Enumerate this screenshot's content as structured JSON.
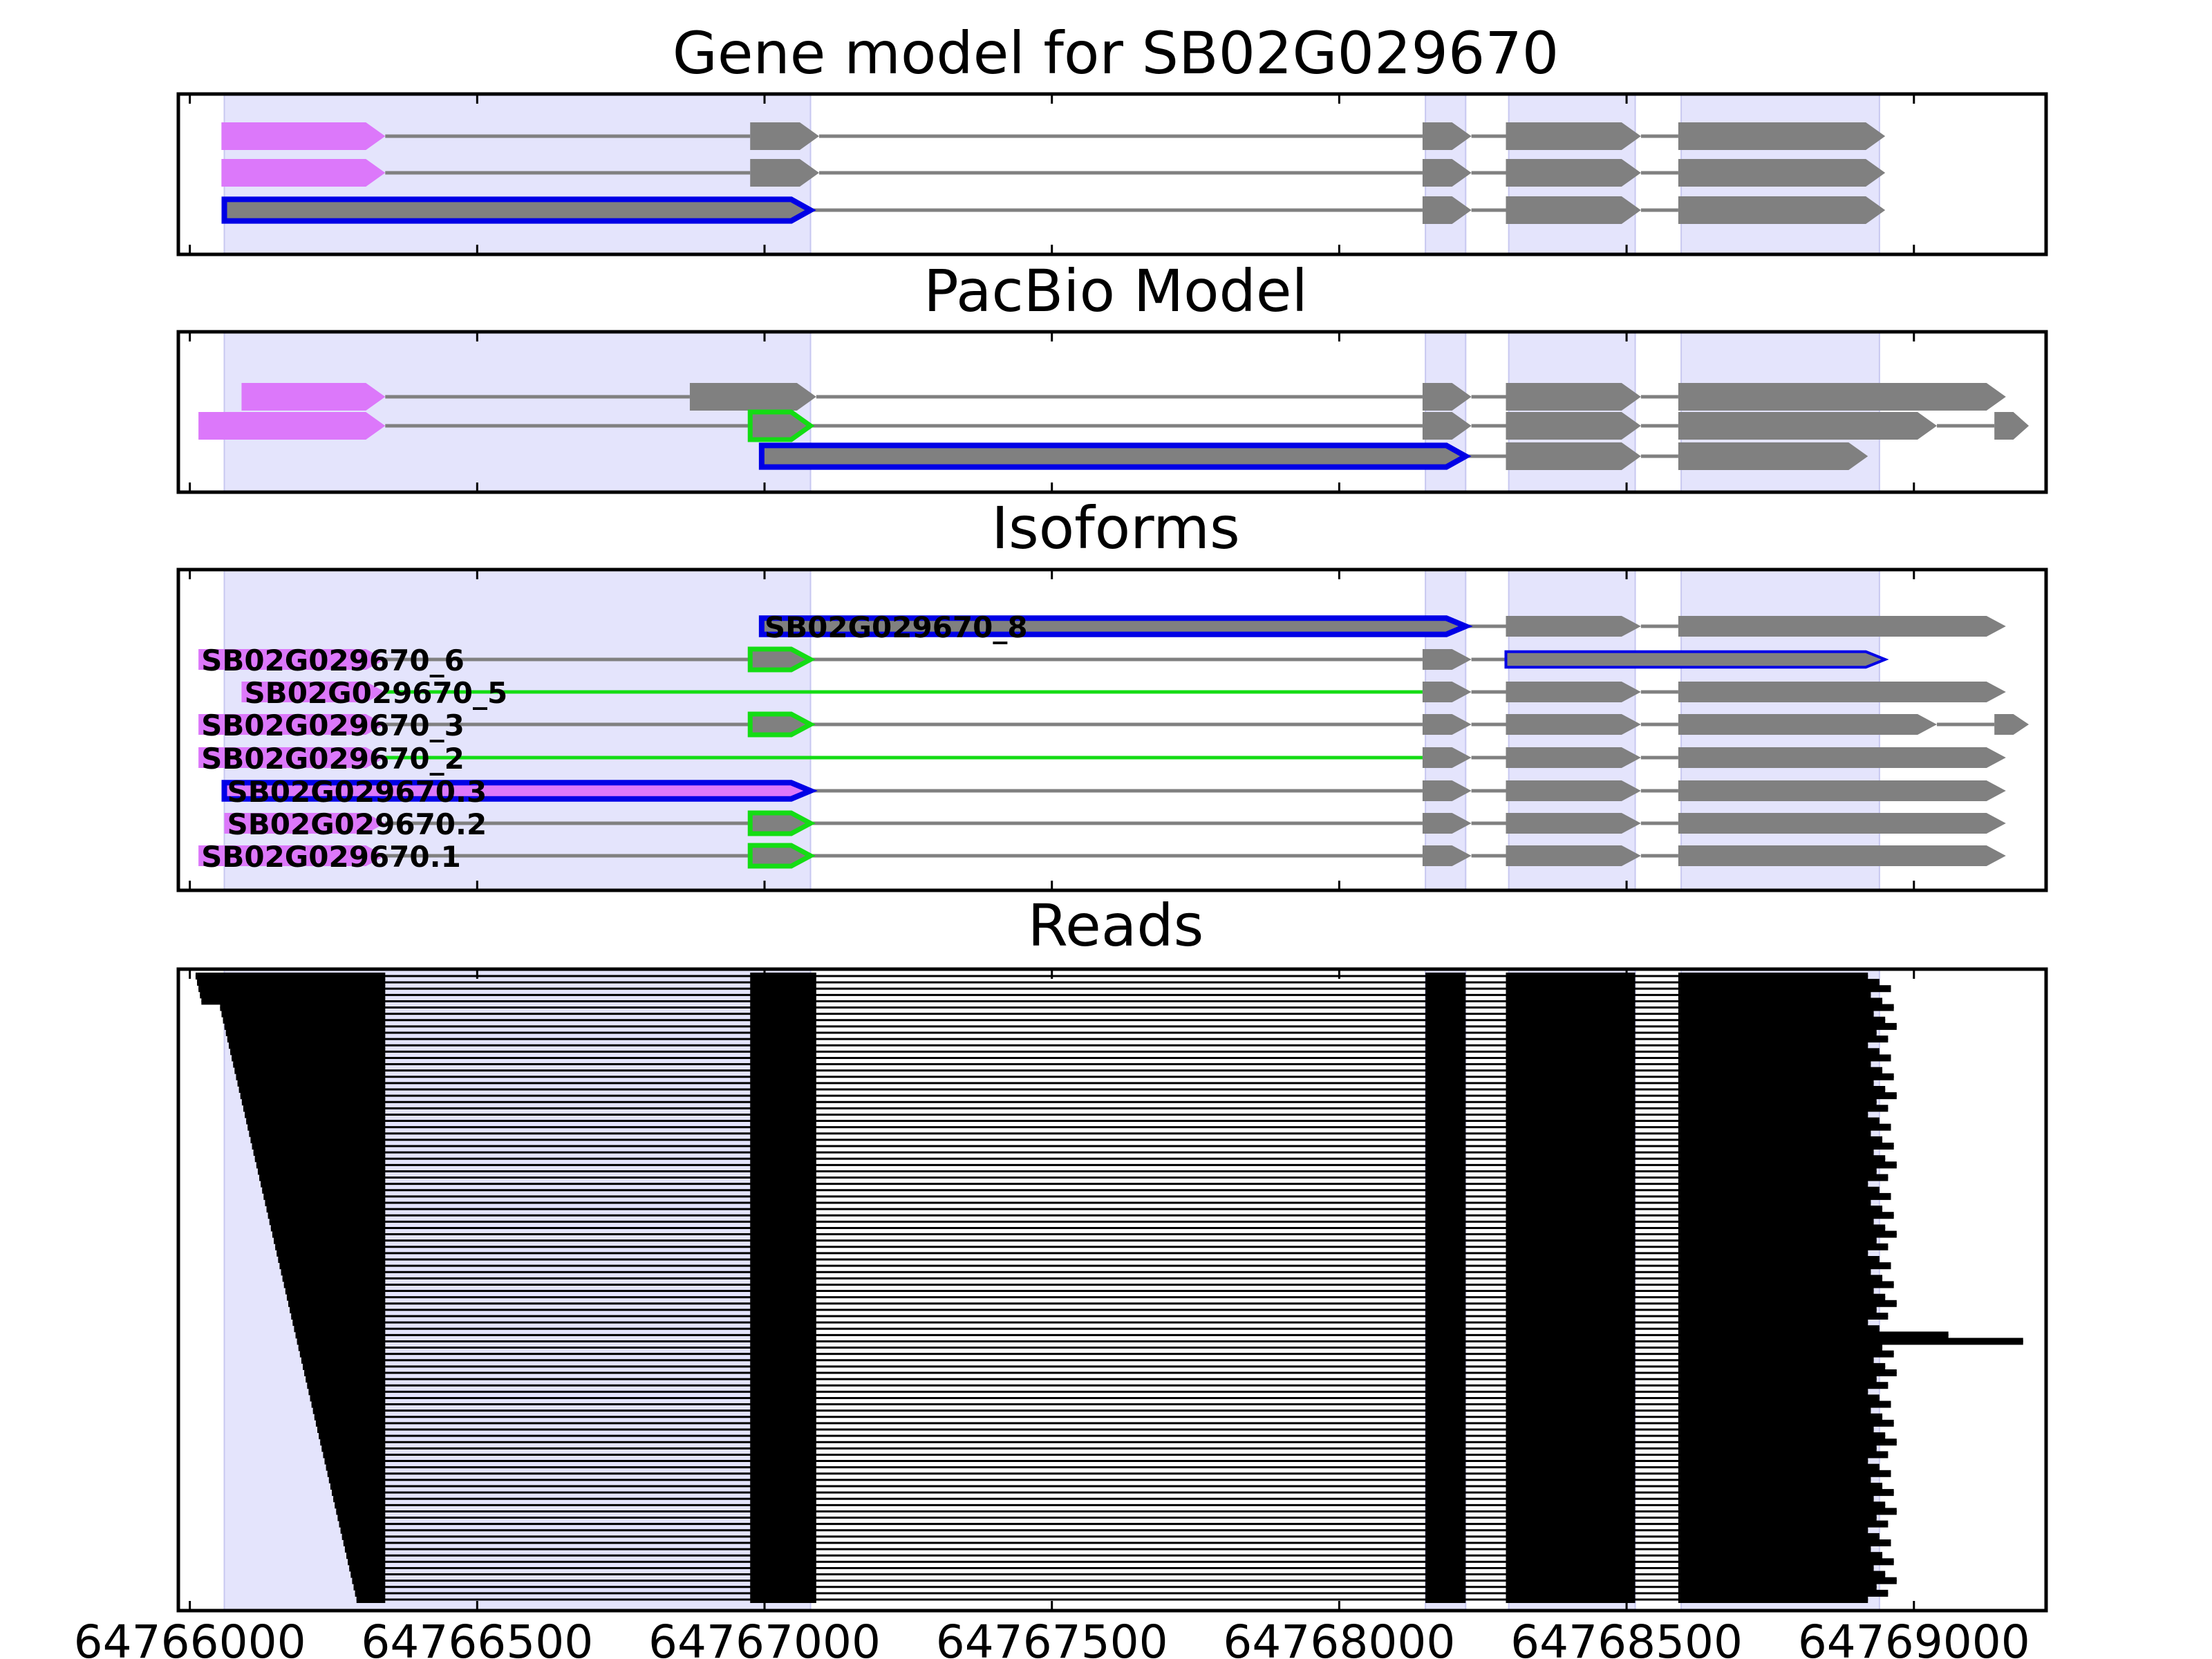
{
  "chart_data": {
    "type": "gene-structure",
    "x_ticks": [
      "64766000",
      "64766500",
      "64767000",
      "64767500",
      "64768000",
      "64768500",
      "64769000"
    ],
    "x_tick_values": [
      64766000,
      64766500,
      64767000,
      64767500,
      64768000,
      64768500,
      64769000
    ],
    "xlim": [
      64765980,
      64769230
    ],
    "colors": {
      "exon": "#808080",
      "utr": "#dc78fa",
      "highlight_border": "#0000e6",
      "novel_green": "#14dc14",
      "intron": "#808080",
      "shade": "#e4e4fc",
      "read": "#000000"
    },
    "exon_regions": [
      [
        64766060,
        64767080
      ],
      [
        64768150,
        64768220
      ],
      [
        64768295,
        64768515
      ],
      [
        64768595,
        64768940
      ]
    ],
    "panels": [
      {
        "title": "Gene model for SB02G029670",
        "tracks": [
          {
            "exons": [
              [
                64766055,
                64766340,
                "utr"
              ],
              [
                64766975,
                64767095,
                "cds"
              ],
              [
                64768145,
                64768230,
                "cds"
              ],
              [
                64768290,
                64768525,
                "cds"
              ],
              [
                64768590,
                64768950,
                "cds"
              ]
            ]
          },
          {
            "exons": [
              [
                64766055,
                64766340,
                "utr"
              ],
              [
                64766975,
                64767095,
                "cds"
              ],
              [
                64768145,
                64768230,
                "cds"
              ],
              [
                64768290,
                64768525,
                "cds"
              ],
              [
                64768590,
                64768950,
                "cds"
              ]
            ]
          },
          {
            "exons": [
              [
                64766060,
                64767080,
                "hl"
              ],
              [
                64768145,
                64768230,
                "cds"
              ],
              [
                64768290,
                64768525,
                "cds"
              ],
              [
                64768590,
                64768950,
                "cds"
              ]
            ]
          }
        ]
      },
      {
        "title": "PacBio Model",
        "tracks": [
          {
            "exons": [
              [
                64766090,
                64766340,
                "utr"
              ],
              [
                64766870,
                64767090,
                "cds"
              ],
              [
                64768145,
                64768230,
                "cds"
              ],
              [
                64768290,
                64768525,
                "cds"
              ],
              [
                64768590,
                64769160,
                "cds"
              ]
            ]
          },
          {
            "exons": [
              [
                64766015,
                64766340,
                "utr"
              ],
              [
                64766975,
                64767080,
                "green"
              ],
              [
                64768145,
                64768230,
                "cds"
              ],
              [
                64768290,
                64768525,
                "cds"
              ],
              [
                64768590,
                64769040,
                "cds"
              ],
              [
                64769140,
                64769200,
                "cds"
              ]
            ]
          },
          {
            "exons": [
              [
                64766995,
                64768220,
                "hl"
              ],
              [
                64768290,
                64768525,
                "cds"
              ],
              [
                64768590,
                64768920,
                "cds"
              ]
            ]
          }
        ]
      },
      {
        "title": "Isoforms",
        "tracks": [
          {
            "label": "SB02G029670_8",
            "exons": [
              [
                64766995,
                64768220,
                "hl"
              ],
              [
                64768290,
                64768525,
                "cds"
              ],
              [
                64768590,
                64769160,
                "cds"
              ]
            ]
          },
          {
            "label": "SB02G029670_6",
            "exons": [
              [
                64766015,
                64766340,
                "utr"
              ],
              [
                64766975,
                64767080,
                "green"
              ],
              [
                64768145,
                64768230,
                "cds"
              ],
              [
                64768290,
                64768950,
                "hlthin"
              ]
            ]
          },
          {
            "label": "SB02G029670_5",
            "exons": [
              [
                64766090,
                64766340,
                "utr"
              ],
              [
                64768145,
                64768230,
                "cds"
              ],
              [
                64768290,
                64768525,
                "cds"
              ],
              [
                64768590,
                64769160,
                "cds"
              ]
            ]
          },
          {
            "label": "SB02G029670_3",
            "exons": [
              [
                64766015,
                64766340,
                "utr"
              ],
              [
                64766975,
                64767080,
                "green"
              ],
              [
                64768145,
                64768230,
                "cds"
              ],
              [
                64768290,
                64768525,
                "cds"
              ],
              [
                64768590,
                64769040,
                "cds"
              ],
              [
                64769140,
                64769200,
                "cds"
              ]
            ]
          },
          {
            "label": "SB02G029670_2",
            "exons": [
              [
                64766015,
                64766340,
                "utr"
              ],
              [
                64768145,
                64768230,
                "cds"
              ],
              [
                64768290,
                64768525,
                "cds"
              ],
              [
                64768590,
                64769160,
                "cds"
              ]
            ]
          },
          {
            "label": "SB02G029670.3",
            "exons": [
              [
                64766060,
                64767080,
                "hlutr"
              ],
              [
                64768145,
                64768230,
                "cds"
              ],
              [
                64768290,
                64768525,
                "cds"
              ],
              [
                64768590,
                64769160,
                "cds"
              ]
            ]
          },
          {
            "label": "SB02G029670.2",
            "exons": [
              [
                64766060,
                64766340,
                "utr"
              ],
              [
                64766975,
                64767080,
                "green"
              ],
              [
                64768145,
                64768230,
                "cds"
              ],
              [
                64768290,
                64768525,
                "cds"
              ],
              [
                64768590,
                64769160,
                "cds"
              ]
            ]
          },
          {
            "label": "SB02G029670.1",
            "exons": [
              [
                64766015,
                64766340,
                "utr"
              ],
              [
                64766975,
                64767080,
                "green"
              ],
              [
                64768145,
                64768230,
                "cds"
              ],
              [
                64768290,
                64768525,
                "cds"
              ],
              [
                64768590,
                64769160,
                "cds"
              ]
            ]
          }
        ]
      },
      {
        "title": "Reads",
        "read_count": 100,
        "read_exons": [
          [
            64766340,
            64766975,
            64767090,
            64768150,
            64768220,
            64768290,
            64768515,
            64768590
          ]
        ]
      }
    ]
  }
}
